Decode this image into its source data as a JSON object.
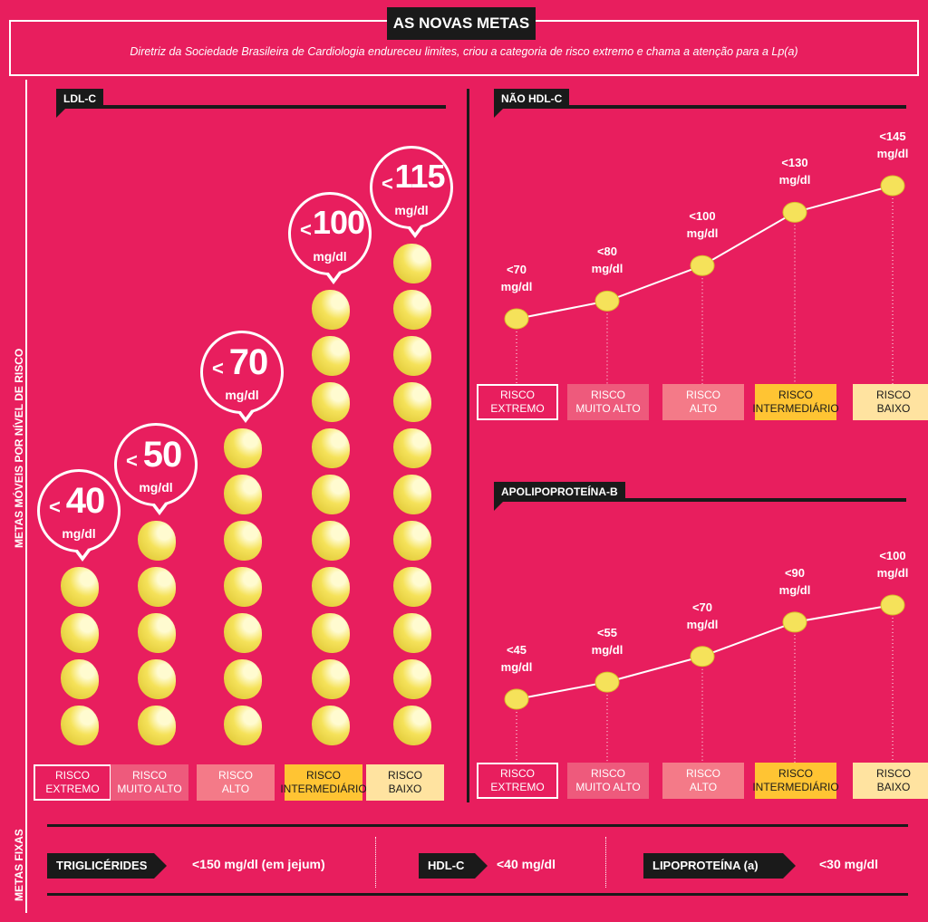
{
  "header": {
    "title": "AS NOVAS METAS",
    "subtitle": "Diretriz da Sociedade Brasileira de Cardiologia endureceu limites, criou a categoria de risco extremo e chama a atenção para a Lp(a)"
  },
  "side_labels": {
    "moveis": "METAS MÓVEIS POR NÍVEL DE RISCO",
    "fixas": "METAS FIXAS"
  },
  "categories": [
    {
      "l1": "RISCO",
      "l2": "EXTREMO",
      "bg": "#e81e5e",
      "fg": "#ffffff"
    },
    {
      "l1": "RISCO",
      "l2": "MUITO ALTO",
      "bg": "#ee5a7c",
      "fg": "#ffffff"
    },
    {
      "l1": "RISCO",
      "l2": "ALTO",
      "bg": "#f47a88",
      "fg": "#ffffff"
    },
    {
      "l1": "RISCO",
      "l2": "INTERMEDIÁRIO",
      "bg": "#ffc433",
      "fg": "#1a1a1a"
    },
    {
      "l1": "RISCO",
      "l2": "BAIXO",
      "bg": "#ffe3a0",
      "fg": "#1a1a1a"
    }
  ],
  "colors": {
    "background": "#e81e5e",
    "dark": "#1a1a1a",
    "pill": "#f5e25a"
  },
  "chart_data": [
    {
      "type": "bar",
      "title": "LDL-C",
      "categories": [
        "RISCO EXTREMO",
        "RISCO MUITO ALTO",
        "RISCO ALTO",
        "RISCO INTERMEDIÁRIO",
        "RISCO BAIXO"
      ],
      "values": [
        40,
        50,
        70,
        100,
        115
      ],
      "pills": [
        4,
        5,
        7,
        10,
        11
      ],
      "labels": [
        {
          "lt": "<",
          "value": "40",
          "unit": "mg/dl"
        },
        {
          "lt": "<",
          "value": "50",
          "unit": "mg/dl"
        },
        {
          "lt": "<",
          "value": "70",
          "unit": "mg/dl"
        },
        {
          "lt": "<",
          "value": "100",
          "unit": "mg/dl"
        },
        {
          "lt": "<",
          "value": "115",
          "unit": "mg/dl"
        }
      ]
    },
    {
      "type": "line",
      "title": "NÃO HDL-C",
      "categories": [
        "RISCO EXTREMO",
        "RISCO MUITO ALTO",
        "RISCO ALTO",
        "RISCO INTERMEDIÁRIO",
        "RISCO BAIXO"
      ],
      "values": [
        70,
        80,
        100,
        130,
        145
      ],
      "labels": [
        "<70",
        "<80",
        "<100",
        "<130",
        "<145"
      ],
      "unit": "mg/dl"
    },
    {
      "type": "line",
      "title": "APOLIPOPROTEÍNA-B",
      "categories": [
        "RISCO EXTREMO",
        "RISCO MUITO ALTO",
        "RISCO ALTO",
        "RISCO INTERMEDIÁRIO",
        "RISCO BAIXO"
      ],
      "values": [
        45,
        55,
        70,
        90,
        100
      ],
      "labels": [
        "<45",
        "<55",
        "<70",
        "<90",
        "<100"
      ],
      "unit": "mg/dl"
    }
  ],
  "fixed": [
    {
      "name": "TRIGLICÉRIDES",
      "value": "<150 mg/dl (em jejum)"
    },
    {
      "name": "HDL-C",
      "value": "<40 mg/dl"
    },
    {
      "name": "LIPOPROTEÍNA (a)",
      "value": "<30 mg/dl"
    }
  ]
}
